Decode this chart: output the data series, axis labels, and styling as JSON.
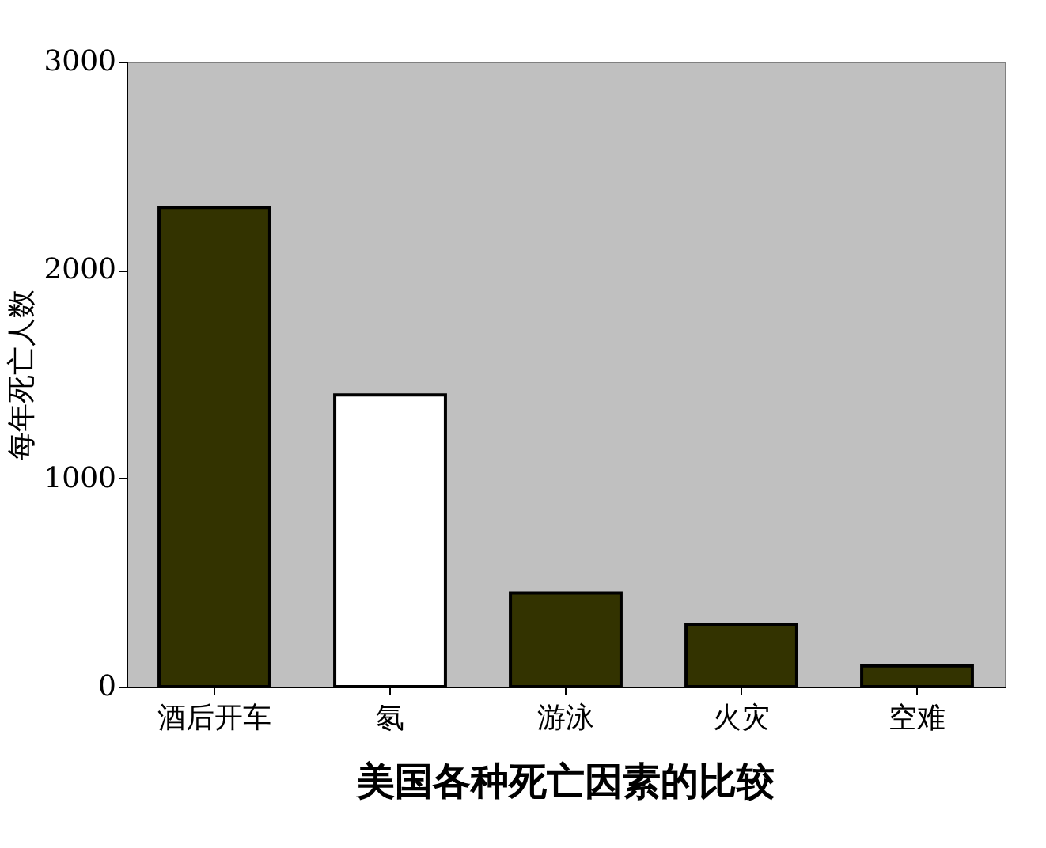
{
  "chart_data": {
    "type": "bar",
    "title": "美国各种死亡因素的比较",
    "ylabel": "每年死亡人数",
    "categories": [
      "酒后开车",
      "氡",
      "游泳",
      "火灾",
      "空难"
    ],
    "values": [
      2300,
      1400,
      450,
      300,
      100
    ],
    "colors": [
      "#333300",
      "#ffffff",
      "#333300",
      "#333300",
      "#333300"
    ],
    "ylim": [
      0,
      3000
    ],
    "yticks": [
      0,
      1000,
      2000,
      3000
    ],
    "grid": false
  }
}
